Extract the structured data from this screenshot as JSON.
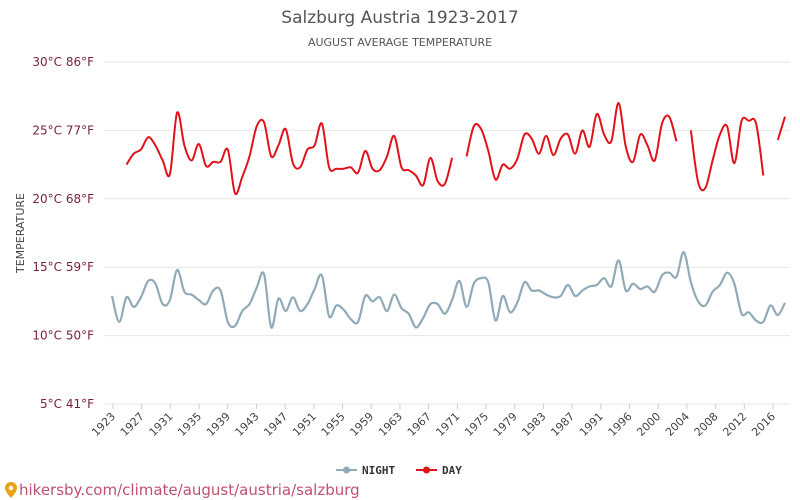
{
  "chart_data": {
    "type": "line",
    "title": "Salzburg Austria 1923-2017",
    "subtitle": "AUGUST AVERAGE TEMPERATURE",
    "ylabel": "TEMPERATURE",
    "ylim": [
      5,
      30
    ],
    "yticks": [
      {
        "value": 5,
        "label": "5°C 41°F"
      },
      {
        "value": 10,
        "label": "10°C 50°F"
      },
      {
        "value": 15,
        "label": "15°C 59°F"
      },
      {
        "value": 20,
        "label": "20°C 68°F"
      },
      {
        "value": 25,
        "label": "25°C 77°F"
      },
      {
        "value": 30,
        "label": "30°C 86°F"
      }
    ],
    "xticks": [
      "1923",
      "1927",
      "1931",
      "1935",
      "1939",
      "1943",
      "1947",
      "1951",
      "1955",
      "1959",
      "1963",
      "1967",
      "1971",
      "1975",
      "1979",
      "1983",
      "1987",
      "1991",
      "1996",
      "2000",
      "2004",
      "2008",
      "2012",
      "2016"
    ],
    "grid": true,
    "legend_position": "bottom",
    "series": [
      {
        "name": "NIGHT",
        "color": "#90aab7",
        "values": [
          12.9,
          11.0,
          12.8,
          12.1,
          12.8,
          14.0,
          13.8,
          12.3,
          12.6,
          14.8,
          13.2,
          13.0,
          12.6,
          12.3,
          13.3,
          13.3,
          11.0,
          10.7,
          11.8,
          12.3,
          13.5,
          14.5,
          10.6,
          12.7,
          11.8,
          12.8,
          11.8,
          12.3,
          13.4,
          14.4,
          11.4,
          12.2,
          11.9,
          11.2,
          11.0,
          12.9,
          12.5,
          12.8,
          11.8,
          13.0,
          12.0,
          11.6,
          10.6,
          11.3,
          12.3,
          12.3,
          11.6,
          12.6,
          14.0,
          12.1,
          13.8,
          14.2,
          13.9,
          11.1,
          12.9,
          11.7,
          12.4,
          13.9,
          13.3,
          13.3,
          13.0,
          12.8,
          12.9,
          13.7,
          12.9,
          13.3,
          13.6,
          13.7,
          14.2,
          13.6,
          15.5,
          13.3,
          13.8,
          13.4,
          13.6,
          13.2,
          14.4,
          14.6,
          14.3,
          16.1,
          13.9,
          12.5,
          12.2,
          13.2,
          13.7,
          14.6,
          13.8,
          11.6,
          11.7,
          11.1,
          11.0,
          12.2,
          11.5,
          12.4
        ]
      },
      {
        "name": "DAY",
        "color": "#e0121a",
        "values": [
          null,
          null,
          22.5,
          23.3,
          23.6,
          24.5,
          23.9,
          22.8,
          21.8,
          26.3,
          23.9,
          22.8,
          24.0,
          22.4,
          22.7,
          22.7,
          23.6,
          20.4,
          21.6,
          23.1,
          25.3,
          25.6,
          23.1,
          23.9,
          25.1,
          22.6,
          22.3,
          23.6,
          23.9,
          25.5,
          22.3,
          22.2,
          22.2,
          22.3,
          21.9,
          23.5,
          22.2,
          22.1,
          23.1,
          24.6,
          22.3,
          22.1,
          21.7,
          21.0,
          23.0,
          21.3,
          21.1,
          23.0,
          null,
          23.1,
          25.3,
          25.1,
          23.5,
          21.4,
          22.5,
          22.2,
          22.9,
          24.7,
          24.4,
          23.3,
          24.6,
          23.2,
          24.4,
          24.7,
          23.3,
          25.0,
          23.8,
          26.2,
          24.7,
          24.2,
          27.0,
          23.8,
          22.7,
          24.7,
          23.9,
          22.8,
          25.5,
          26.0,
          24.2,
          null,
          25.0,
          21.2,
          20.8,
          22.8,
          24.7,
          25.3,
          22.6,
          25.7,
          25.7,
          25.5,
          21.7,
          null,
          24.3,
          26.0
        ]
      }
    ]
  },
  "legend": {
    "night": "NIGHT",
    "day": "DAY"
  },
  "watermark": "hikersby.com/climate/august/austria/salzburg",
  "colors": {
    "tick_label": "#7a1f3a",
    "grid": "#e6e6e6",
    "watermark": "#c0506e"
  },
  "icons": {
    "watermark": "location-pin-icon"
  }
}
